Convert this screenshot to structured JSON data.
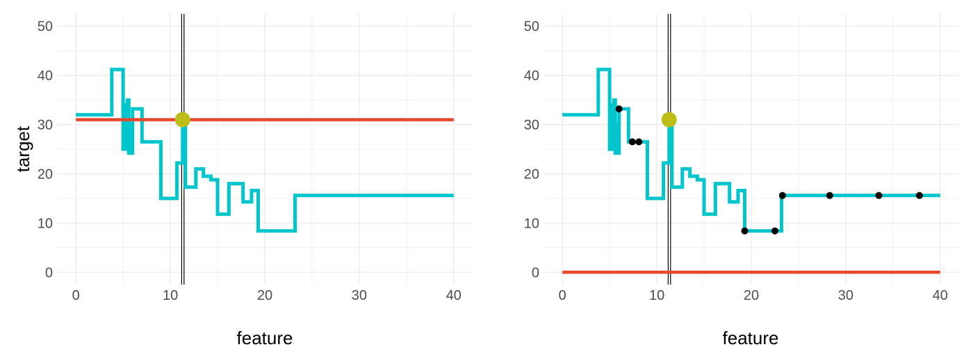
{
  "colors": {
    "step_line": "#00c5cd",
    "horizontal_line": "#e8472c",
    "highlight_point": "#bdbd18",
    "sample_points": "#000000",
    "vertical_line": "#000000",
    "grid": "#ebebeb",
    "tick_text": "#4d4d4d"
  },
  "chart_data": [
    {
      "type": "line",
      "xlabel": "feature",
      "ylabel": "target",
      "xlim": [
        -2,
        42
      ],
      "ylim": [
        -2.5,
        52.5
      ],
      "x_ticks": [
        0,
        10,
        20,
        30,
        40
      ],
      "y_ticks": [
        0,
        10,
        20,
        30,
        40,
        50
      ],
      "grid": true,
      "series": [
        {
          "kind": "step",
          "color": "#00c5cd",
          "points": [
            [
              0,
              32
            ],
            [
              3.8,
              32
            ],
            [
              3.8,
              41.2
            ],
            [
              5.0,
              41.2
            ],
            [
              5.0,
              25
            ],
            [
              5.15,
              25
            ],
            [
              5.15,
              34
            ],
            [
              5.3,
              34
            ],
            [
              5.3,
              25
            ],
            [
              5.45,
              25
            ],
            [
              5.45,
              35
            ],
            [
              5.6,
              35
            ],
            [
              5.6,
              24.2
            ],
            [
              5.75,
              24.2
            ],
            [
              5.75,
              30
            ],
            [
              5.9,
              30
            ],
            [
              5.9,
              24.2
            ],
            [
              6.0,
              24.2
            ],
            [
              6.0,
              33.2
            ],
            [
              7.0,
              33.2
            ],
            [
              7.0,
              26.5
            ],
            [
              9.0,
              26.5
            ],
            [
              9.0,
              15
            ],
            [
              10.7,
              15
            ],
            [
              10.7,
              22.2
            ],
            [
              11.3,
              22.2
            ],
            [
              11.3,
              31
            ],
            [
              11.6,
              31
            ],
            [
              11.6,
              17.3
            ],
            [
              12.7,
              17.3
            ],
            [
              12.7,
              21
            ],
            [
              13.5,
              21
            ],
            [
              13.5,
              19.5
            ],
            [
              14.3,
              19.5
            ],
            [
              14.3,
              18.8
            ],
            [
              15.0,
              18.8
            ],
            [
              15.0,
              11.8
            ],
            [
              16.2,
              11.8
            ],
            [
              16.2,
              18
            ],
            [
              17.7,
              18
            ],
            [
              17.7,
              14.3
            ],
            [
              18.6,
              14.3
            ],
            [
              18.6,
              16.6
            ],
            [
              19.3,
              16.6
            ],
            [
              19.3,
              8.4
            ],
            [
              23.2,
              8.4
            ],
            [
              23.2,
              15.6
            ],
            [
              40,
              15.6
            ]
          ]
        },
        {
          "kind": "horizontal",
          "color": "#e8472c",
          "y": 31,
          "x_range": [
            0,
            40
          ]
        }
      ],
      "vertical_lines": [
        11.2,
        11.45
      ],
      "highlight_point": {
        "x": 11.3,
        "y": 31
      }
    },
    {
      "type": "line",
      "xlabel": "feature",
      "ylabel": "",
      "xlim": [
        -2,
        42
      ],
      "ylim": [
        -2.5,
        52.5
      ],
      "x_ticks": [
        0,
        10,
        20,
        30,
        40
      ],
      "y_ticks": [
        0,
        10,
        20,
        30,
        40,
        50
      ],
      "grid": true,
      "series": [
        {
          "kind": "step",
          "color": "#00c5cd",
          "points": [
            [
              0,
              32
            ],
            [
              3.8,
              32
            ],
            [
              3.8,
              41.2
            ],
            [
              5.0,
              41.2
            ],
            [
              5.0,
              25
            ],
            [
              5.15,
              25
            ],
            [
              5.15,
              34
            ],
            [
              5.3,
              34
            ],
            [
              5.3,
              25
            ],
            [
              5.45,
              25
            ],
            [
              5.45,
              35
            ],
            [
              5.6,
              35
            ],
            [
              5.6,
              24.2
            ],
            [
              5.75,
              24.2
            ],
            [
              5.75,
              30
            ],
            [
              5.9,
              30
            ],
            [
              5.9,
              24.2
            ],
            [
              6.0,
              24.2
            ],
            [
              6.0,
              33.2
            ],
            [
              7.0,
              33.2
            ],
            [
              7.0,
              26.5
            ],
            [
              9.0,
              26.5
            ],
            [
              9.0,
              15
            ],
            [
              10.7,
              15
            ],
            [
              10.7,
              22.2
            ],
            [
              11.3,
              22.2
            ],
            [
              11.3,
              31
            ],
            [
              11.6,
              31
            ],
            [
              11.6,
              17.3
            ],
            [
              12.7,
              17.3
            ],
            [
              12.7,
              21
            ],
            [
              13.5,
              21
            ],
            [
              13.5,
              19.5
            ],
            [
              14.3,
              19.5
            ],
            [
              14.3,
              18.8
            ],
            [
              15.0,
              18.8
            ],
            [
              15.0,
              11.8
            ],
            [
              16.2,
              11.8
            ],
            [
              16.2,
              18
            ],
            [
              17.7,
              18
            ],
            [
              17.7,
              14.3
            ],
            [
              18.6,
              14.3
            ],
            [
              18.6,
              16.6
            ],
            [
              19.3,
              16.6
            ],
            [
              19.3,
              8.4
            ],
            [
              23.2,
              8.4
            ],
            [
              23.2,
              15.6
            ],
            [
              40,
              15.6
            ]
          ]
        },
        {
          "kind": "horizontal",
          "color": "#e8472c",
          "y": 0,
          "x_range": [
            0,
            40
          ]
        }
      ],
      "vertical_lines": [
        11.2,
        11.45
      ],
      "highlight_point": {
        "x": 11.3,
        "y": 31
      },
      "sample_points": [
        [
          6.0,
          33.2
        ],
        [
          7.4,
          26.5
        ],
        [
          8.1,
          26.5
        ],
        [
          19.3,
          8.4
        ],
        [
          22.5,
          8.4
        ],
        [
          23.3,
          15.6
        ],
        [
          28.3,
          15.6
        ],
        [
          33.5,
          15.6
        ],
        [
          37.8,
          15.6
        ]
      ]
    }
  ]
}
